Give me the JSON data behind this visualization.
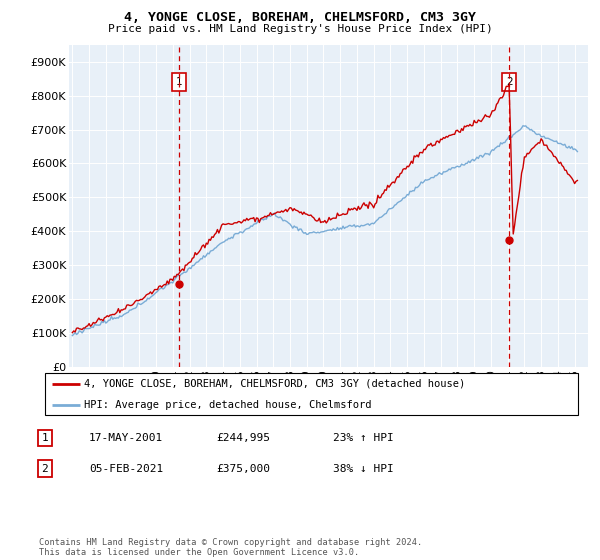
{
  "title1": "4, YONGE CLOSE, BOREHAM, CHELMSFORD, CM3 3GY",
  "title2": "Price paid vs. HM Land Registry's House Price Index (HPI)",
  "legend_line1": "4, YONGE CLOSE, BOREHAM, CHELMSFORD, CM3 3GY (detached house)",
  "legend_line2": "HPI: Average price, detached house, Chelmsford",
  "annotation1_date": "17-MAY-2001",
  "annotation1_price": "£244,995",
  "annotation1_hpi": "23% ↑ HPI",
  "annotation2_date": "05-FEB-2021",
  "annotation2_price": "£375,000",
  "annotation2_hpi": "38% ↓ HPI",
  "footer": "Contains HM Land Registry data © Crown copyright and database right 2024.\nThis data is licensed under the Open Government Licence v3.0.",
  "red_color": "#cc0000",
  "blue_color": "#7aacd6",
  "plot_bg": "#e8f0f8",
  "ylim": [
    0,
    950000
  ],
  "yticks": [
    0,
    100000,
    200000,
    300000,
    400000,
    500000,
    600000,
    700000,
    800000,
    900000
  ],
  "ytick_labels": [
    "£0",
    "£100K",
    "£200K",
    "£300K",
    "£400K",
    "£500K",
    "£600K",
    "£700K",
    "£800K",
    "£900K"
  ],
  "sale1_year": 2001.38,
  "sale1_price": 244995,
  "sale2_year": 2021.09,
  "sale2_price": 375000,
  "xmin": 1994.8,
  "xmax": 2025.8
}
